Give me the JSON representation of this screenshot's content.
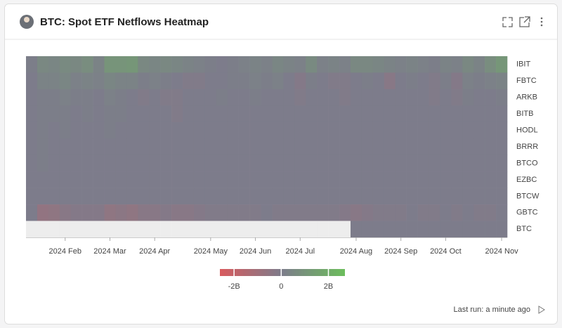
{
  "chart_data": {
    "type": "heatmap",
    "title": "BTC: Spot ETF Netflows Heatmap",
    "categories": [
      null,
      null,
      null,
      "2024 Feb",
      null,
      null,
      null,
      "2024 Mar",
      null,
      null,
      null,
      "2024 Apr",
      null,
      null,
      null,
      null,
      "2024 May",
      null,
      null,
      null,
      "2024 Jun",
      null,
      null,
      null,
      "2024 Jul",
      null,
      null,
      null,
      null,
      "2024 Aug",
      null,
      null,
      null,
      "2024 Sep",
      null,
      null,
      null,
      "2024 Oct",
      null,
      null,
      null,
      null,
      "2024 Nov"
    ],
    "series": [
      {
        "name": "IBIT",
        "values": [
          0.1,
          0.5,
          0.4,
          0.6,
          0.5,
          0.7,
          0.3,
          1.0,
          1.0,
          1.1,
          0.5,
          0.4,
          0.5,
          0.4,
          0.3,
          0.2,
          0.1,
          0,
          0.1,
          0.2,
          0.3,
          0.2,
          0.4,
          0.3,
          0.2,
          0.6,
          0.2,
          0.3,
          0.2,
          0.5,
          0.5,
          0.4,
          0.3,
          0.2,
          0.3,
          0.2,
          0.1,
          0.3,
          0.2,
          0.5,
          0.3,
          0.7,
          1.1
        ]
      },
      {
        "name": "FBTC",
        "values": [
          0,
          0.3,
          0.3,
          0.4,
          0.2,
          0.3,
          0.2,
          0.4,
          0.3,
          0.3,
          0.1,
          0.2,
          0.1,
          0,
          -0.1,
          -0.1,
          0,
          0,
          0.1,
          0.1,
          0.2,
          0.1,
          0.2,
          0,
          -0.2,
          0.1,
          0,
          -0.1,
          -0.1,
          0,
          0.1,
          0,
          -0.3,
          0,
          0.1,
          0,
          -0.1,
          0.1,
          -0.2,
          0.2,
          0.1,
          0.2,
          0.3
        ]
      },
      {
        "name": "ARKB",
        "values": [
          0,
          0.1,
          0.1,
          0.2,
          0.1,
          0.1,
          0,
          0.2,
          0.1,
          0,
          -0.1,
          0,
          -0.1,
          -0.1,
          0,
          0,
          0,
          0.1,
          0,
          0,
          0.1,
          0,
          0,
          0,
          -0.1,
          0,
          0,
          0,
          -0.1,
          0,
          0,
          0,
          0,
          0,
          0,
          0,
          -0.1,
          0,
          -0.1,
          0.1,
          0,
          0,
          0.1
        ]
      },
      {
        "name": "BITB",
        "values": [
          0,
          0.1,
          0.1,
          0.1,
          0,
          0.1,
          0,
          0.1,
          0.1,
          0,
          0,
          0,
          0,
          -0.1,
          0,
          0,
          0,
          0,
          0,
          0,
          0,
          0,
          0,
          0,
          0,
          0,
          0,
          0,
          0,
          0,
          0,
          0,
          0,
          0,
          0,
          0,
          0,
          0,
          0,
          0,
          0,
          0,
          0
        ]
      },
      {
        "name": "HODL",
        "values": [
          0,
          0.1,
          0,
          0.1,
          0,
          0,
          0,
          0.1,
          0,
          0,
          0,
          0,
          0,
          0,
          0,
          0,
          0,
          0,
          0,
          0,
          0,
          0,
          0,
          0,
          0,
          0,
          0,
          0,
          0,
          0,
          0,
          0,
          0,
          0,
          0,
          0,
          0,
          0,
          0,
          0,
          0,
          0,
          0
        ]
      },
      {
        "name": "BRRR",
        "values": [
          0,
          0.1,
          0,
          0,
          0,
          0,
          0,
          0,
          0,
          0,
          0,
          0,
          0,
          0,
          0,
          0,
          0,
          0,
          0,
          0,
          0,
          0,
          0,
          0,
          0,
          0,
          0,
          0,
          0,
          0,
          0,
          0,
          0,
          0,
          0,
          0,
          0,
          0,
          0,
          0,
          0,
          0,
          0
        ]
      },
      {
        "name": "BTCO",
        "values": [
          0,
          0.1,
          0,
          0,
          0,
          0,
          0,
          0,
          0,
          0,
          0,
          0,
          0,
          0,
          0,
          0,
          0,
          0,
          0,
          0,
          0,
          0,
          0,
          0,
          0,
          0,
          0,
          0,
          0,
          0,
          0,
          0,
          0,
          0,
          0,
          0,
          0,
          0,
          0,
          0,
          0,
          0,
          0
        ]
      },
      {
        "name": "EZBC",
        "values": [
          0,
          0,
          0,
          0,
          0,
          0,
          0,
          0,
          0,
          0,
          0,
          0,
          0,
          0,
          0,
          0,
          0,
          0,
          0,
          0,
          0,
          0,
          0,
          0,
          0,
          0,
          0,
          0,
          0,
          0,
          0,
          0,
          0,
          0,
          0,
          0,
          0,
          0,
          0,
          0,
          0,
          0,
          0
        ]
      },
      {
        "name": "BTCW",
        "values": [
          0,
          0,
          0,
          0,
          0,
          0,
          0,
          0,
          0,
          0,
          0,
          0,
          0,
          0,
          0,
          0,
          0,
          0,
          0,
          0,
          0,
          0,
          0,
          0,
          0,
          0,
          0,
          0,
          0,
          0,
          0,
          0,
          0,
          0,
          0,
          0,
          0,
          0,
          0,
          0,
          0,
          0,
          0
        ]
      },
      {
        "name": "GBTC",
        "values": [
          0,
          -0.6,
          -0.5,
          -0.3,
          -0.2,
          -0.2,
          -0.2,
          -0.5,
          -0.4,
          -0.5,
          -0.3,
          -0.3,
          -0.2,
          -0.3,
          -0.3,
          -0.2,
          -0.1,
          -0.1,
          -0.1,
          -0.1,
          -0.1,
          0,
          -0.1,
          -0.1,
          -0.1,
          -0.1,
          -0.1,
          -0.1,
          -0.2,
          -0.3,
          -0.2,
          -0.1,
          -0.1,
          -0.1,
          0,
          -0.1,
          -0.1,
          0,
          -0.1,
          0,
          -0.1,
          -0.1,
          0
        ]
      },
      {
        "name": "BTC",
        "values": [
          null,
          null,
          null,
          null,
          null,
          null,
          null,
          null,
          null,
          null,
          null,
          null,
          null,
          null,
          null,
          null,
          null,
          null,
          null,
          null,
          null,
          null,
          null,
          null,
          null,
          null,
          null,
          null,
          null,
          0,
          0,
          0,
          0,
          0,
          0,
          0,
          0,
          0,
          0,
          0,
          0,
          0,
          0
        ]
      }
    ],
    "zlim": [
      -2.6,
      2.7
    ],
    "zticks": [
      {
        "value": -2,
        "label": "-2B"
      },
      0,
      {
        "value": 2,
        "label": "2B"
      }
    ],
    "colors": [
      "#d95b5e",
      "#7d7c8b",
      "#6cbd5c"
    ]
  },
  "footer": "Last run: a minute ago"
}
